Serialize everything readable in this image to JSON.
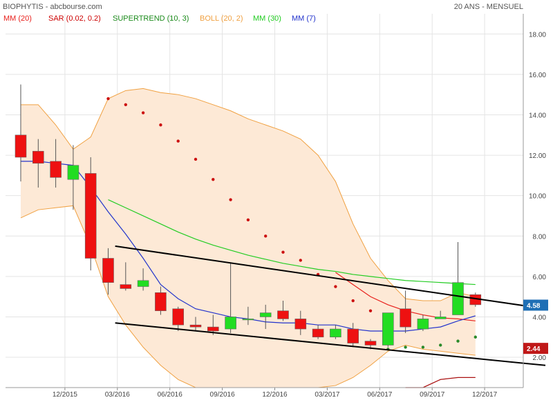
{
  "header": {
    "title": "BIOPHYTIS - abcbourse.com",
    "period": "20 ANS - MENSUEL"
  },
  "legend": [
    {
      "label": "MM (20)",
      "color": "#e8201c"
    },
    {
      "label": "SAR (0.02, 0.2)",
      "color": "#cc0000"
    },
    {
      "label": "SUPERTREND (10, 3)",
      "color": "#1a8a1a"
    },
    {
      "label": "BOLL (20, 2)",
      "color": "#f0a040"
    },
    {
      "label": "MM (30)",
      "color": "#22cc22"
    },
    {
      "label": "MM (7)",
      "color": "#2233cc"
    }
  ],
  "price_tags": [
    {
      "label": "4.58",
      "value": 4.58,
      "color": "#1f6fb5"
    },
    {
      "label": "2.44",
      "value": 2.44,
      "color": "#c01818"
    }
  ],
  "colors": {
    "up": "#22dd22",
    "down": "#ee1111",
    "boll_fill": "#fde9d6",
    "boll_line": "#f0a040",
    "grid": "#e4e4e4"
  },
  "chart_data": {
    "type": "candlestick",
    "ylim": [
      0.5,
      19
    ],
    "y_ticks": [
      "2.00",
      "4.00",
      "6.00",
      "8.00",
      "10.00",
      "12.00",
      "14.00",
      "16.00",
      "18.00"
    ],
    "x_ticks": [
      {
        "label": "12/2015",
        "index": 3
      },
      {
        "label": "03/2016",
        "index": 6
      },
      {
        "label": "06/2016",
        "index": 9
      },
      {
        "label": "09/2016",
        "index": 12
      },
      {
        "label": "12/2016",
        "index": 15
      },
      {
        "label": "03/2017",
        "index": 18
      },
      {
        "label": "06/2017",
        "index": 21
      },
      {
        "label": "09/2017",
        "index": 24
      },
      {
        "label": "12/2017",
        "index": 27
      }
    ],
    "candles": [
      {
        "o": 13.0,
        "h": 15.5,
        "l": 10.7,
        "c": 11.9
      },
      {
        "o": 12.2,
        "h": 12.8,
        "l": 10.4,
        "c": 11.6
      },
      {
        "o": 11.7,
        "h": 12.8,
        "l": 10.4,
        "c": 10.9
      },
      {
        "o": 10.8,
        "h": 12.5,
        "l": 9.3,
        "c": 11.5
      },
      {
        "o": 11.1,
        "h": 11.9,
        "l": 6.3,
        "c": 6.9
      },
      {
        "o": 6.9,
        "h": 7.4,
        "l": 5.1,
        "c": 5.7
      },
      {
        "o": 5.6,
        "h": 6.7,
        "l": 5.3,
        "c": 5.4
      },
      {
        "o": 5.5,
        "h": 6.4,
        "l": 5.3,
        "c": 5.8
      },
      {
        "o": 5.2,
        "h": 5.5,
        "l": 4.1,
        "c": 4.3
      },
      {
        "o": 4.4,
        "h": 4.5,
        "l": 3.3,
        "c": 3.6
      },
      {
        "o": 3.6,
        "h": 4.0,
        "l": 3.3,
        "c": 3.5
      },
      {
        "o": 3.5,
        "h": 4.1,
        "l": 3.1,
        "c": 3.3
      },
      {
        "o": 3.4,
        "h": 6.7,
        "l": 3.2,
        "c": 4.0
      },
      {
        "o": 3.9,
        "h": 4.5,
        "l": 3.6,
        "c": 3.9
      },
      {
        "o": 4.0,
        "h": 4.6,
        "l": 3.4,
        "c": 4.2
      },
      {
        "o": 4.3,
        "h": 4.8,
        "l": 3.8,
        "c": 3.9
      },
      {
        "o": 3.9,
        "h": 4.3,
        "l": 3.1,
        "c": 3.4
      },
      {
        "o": 3.4,
        "h": 3.6,
        "l": 2.9,
        "c": 3.0
      },
      {
        "o": 3.0,
        "h": 3.6,
        "l": 2.9,
        "c": 3.4
      },
      {
        "o": 3.4,
        "h": 3.7,
        "l": 2.5,
        "c": 2.7
      },
      {
        "o": 2.8,
        "h": 2.9,
        "l": 2.4,
        "c": 2.6
      },
      {
        "o": 2.6,
        "h": 4.1,
        "l": 2.5,
        "c": 4.2
      },
      {
        "o": 4.4,
        "h": 5.3,
        "l": 3.2,
        "c": 3.5
      },
      {
        "o": 3.4,
        "h": 4.1,
        "l": 3.3,
        "c": 3.9
      },
      {
        "o": 3.9,
        "h": 4.3,
        "l": 3.9,
        "c": 4.0
      },
      {
        "o": 4.1,
        "h": 7.7,
        "l": 4.1,
        "c": 5.7
      },
      {
        "o": 5.1,
        "h": 5.2,
        "l": 4.5,
        "c": 4.6
      }
    ],
    "ma7": [
      11.7,
      11.7,
      11.6,
      11.5,
      10.4,
      9.2,
      8.1,
      6.9,
      5.6,
      4.9,
      4.4,
      4.2,
      4.0,
      3.9,
      3.75,
      3.7,
      3.7,
      3.6,
      3.6,
      3.4,
      3.3,
      3.3,
      3.3,
      3.4,
      3.5,
      3.8,
      4.05
    ],
    "ma20": [
      null,
      null,
      null,
      null,
      null,
      null,
      null,
      null,
      null,
      null,
      null,
      null,
      null,
      null,
      null,
      null,
      null,
      null,
      6.2,
      5.6,
      5.0,
      4.6,
      4.3,
      4.1,
      3.95,
      3.9,
      3.8
    ],
    "ma30": [
      null,
      null,
      null,
      null,
      null,
      9.8,
      9.4,
      9.0,
      8.6,
      8.2,
      7.85,
      7.55,
      7.3,
      7.05,
      6.85,
      6.65,
      6.5,
      6.35,
      6.25,
      6.1,
      6.0,
      5.9,
      5.8,
      5.75,
      5.7,
      5.65,
      5.6
    ],
    "boll_upper": [
      14.5,
      14.5,
      13.5,
      12.3,
      12.9,
      14.8,
      15.2,
      15.3,
      15.1,
      15.0,
      14.8,
      14.5,
      14.2,
      13.8,
      13.5,
      13.2,
      12.8,
      12.0,
      10.7,
      8.6,
      6.9,
      5.8,
      4.9,
      4.8,
      4.8,
      5.2,
      5.0
    ],
    "boll_lower": [
      8.9,
      9.3,
      9.4,
      9.5,
      7.5,
      5.0,
      3.6,
      2.5,
      1.6,
      0.9,
      0.5,
      0.3,
      0.1,
      0.1,
      0.0,
      0.0,
      0.0,
      0.2,
      0.6,
      1.0,
      1.6,
      2.3,
      2.6,
      2.4,
      2.3,
      2.2,
      2.1
    ],
    "sar": [
      null,
      null,
      null,
      null,
      null,
      14.8,
      14.5,
      14.1,
      13.5,
      12.7,
      11.8,
      10.8,
      9.8,
      8.8,
      8.0,
      7.2,
      6.8,
      6.1,
      5.5,
      4.8,
      4.3,
      2.4,
      2.5,
      2.5,
      2.6,
      2.8,
      3.0
    ],
    "supertrend": [
      null,
      null,
      null,
      null,
      null,
      null,
      null,
      null,
      null,
      null,
      null,
      null,
      null,
      null,
      null,
      null,
      null,
      null,
      null,
      null,
      null,
      null,
      -0.1,
      0.2,
      0.9,
      1.0,
      1.0
    ],
    "trendlines": [
      {
        "x0": 5.4,
        "y0": 7.5,
        "x1": 30.0,
        "y1": 4.4
      },
      {
        "x0": 5.4,
        "y0": 3.7,
        "x1": 30.0,
        "y1": 1.6
      }
    ]
  }
}
